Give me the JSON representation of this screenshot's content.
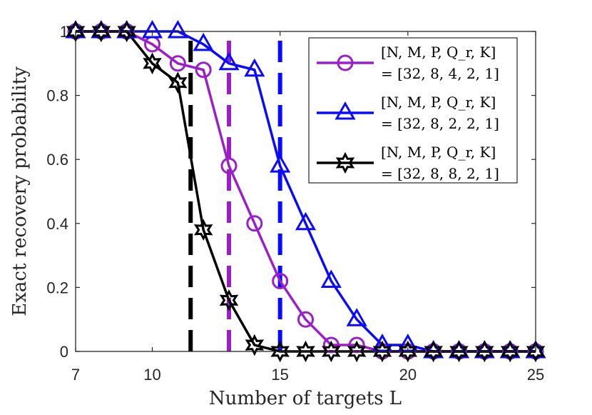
{
  "chart_data": {
    "type": "line",
    "xlabel": "Number of targets L",
    "ylabel": "Exact recovery probability",
    "xlim": [
      7,
      25
    ],
    "ylim": [
      0,
      1
    ],
    "xticks": [
      "7",
      "10",
      "15",
      "20",
      "25"
    ],
    "yticks": [
      "0",
      "0.2",
      "0.4",
      "0.6",
      "0.8",
      "1"
    ],
    "grid": false,
    "legend_position": "top-right",
    "x": [
      7,
      8,
      9,
      10,
      11,
      12,
      13,
      14,
      15,
      16,
      17,
      18,
      19,
      20,
      21,
      22,
      23,
      24,
      25
    ],
    "series": [
      {
        "legend_line1": "[N, M, P, Q_r, K]",
        "legend_line2": "= [32, 8, 4, 2, 1]",
        "color": "#9b1fc9",
        "marker": "circle",
        "values": [
          1,
          1,
          1,
          0.96,
          0.9,
          0.88,
          0.58,
          0.4,
          0.22,
          0.1,
          0.02,
          0.02,
          0,
          0,
          0,
          0,
          0,
          0,
          0
        ],
        "threshold_x": 13
      },
      {
        "legend_line1": "[N, M, P, Q_r, K]",
        "legend_line2": "= [32, 8, 2, 2, 1]",
        "color": "#0a0aff",
        "marker": "triangle",
        "values": [
          1,
          1,
          1,
          1,
          1,
          0.96,
          0.9,
          0.88,
          0.58,
          0.4,
          0.22,
          0.1,
          0.02,
          0.02,
          0,
          0,
          0,
          0,
          0
        ],
        "threshold_x": 15
      },
      {
        "legend_line1": "[N, M, P, Q_r, K]",
        "legend_line2": "= [32, 8, 8, 2, 1]",
        "color": "#000000",
        "marker": "hexagram",
        "values": [
          1,
          1,
          1,
          0.9,
          0.84,
          0.38,
          0.16,
          0.02,
          0,
          0,
          0,
          0,
          0,
          0,
          0,
          0,
          0,
          0,
          0
        ],
        "threshold_x": 11.5
      }
    ]
  }
}
